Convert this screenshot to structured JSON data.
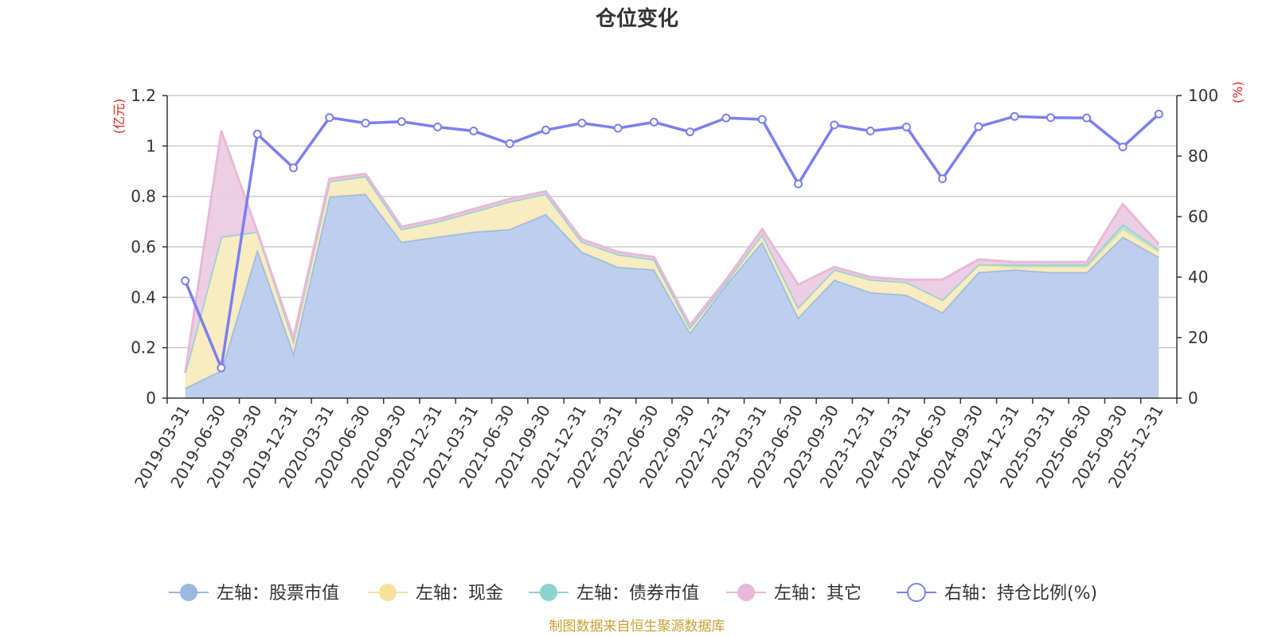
{
  "chart_data": {
    "type": "area",
    "title": "仓位变化",
    "left_axis": {
      "unit": "(亿元)",
      "ylim": [
        0,
        1.2
      ],
      "ticks": [
        0,
        0.2,
        0.4,
        0.6,
        0.8,
        1,
        1.2
      ],
      "tick_labels": [
        "0",
        "0.2",
        "0.4",
        "0.6",
        "0.8",
        "1",
        "1.2"
      ]
    },
    "right_axis": {
      "unit": "(%)",
      "ylim": [
        0,
        100
      ],
      "ticks": [
        0,
        20,
        40,
        60,
        80,
        100
      ],
      "tick_labels": [
        "0",
        "20",
        "40",
        "60",
        "80",
        "100"
      ]
    },
    "categories": [
      "2019-03-31",
      "2019-06-30",
      "2019-09-30",
      "2019-12-31",
      "2020-03-31",
      "2020-06-30",
      "2020-09-30",
      "2020-12-31",
      "2021-03-31",
      "2021-06-30",
      "2021-09-30",
      "2021-12-31",
      "2022-03-31",
      "2022-06-30",
      "2022-09-30",
      "2022-12-31",
      "2023-03-31",
      "2023-06-30",
      "2023-09-30",
      "2023-12-31",
      "2024-03-31",
      "2024-06-30",
      "2024-09-30",
      "2024-12-31",
      "2025-03-31",
      "2025-06-30",
      "2025-09-30",
      "2025-12-31"
    ],
    "series": [
      {
        "name": "左轴：股票市值",
        "axis": "left",
        "type": "area",
        "color": "#9bb8e0",
        "fill": "#b8cceb",
        "values": [
          0.04,
          0.11,
          0.59,
          0.18,
          0.8,
          0.81,
          0.62,
          0.64,
          0.66,
          0.67,
          0.73,
          0.58,
          0.52,
          0.51,
          0.26,
          0.45,
          0.62,
          0.32,
          0.47,
          0.42,
          0.41,
          0.34,
          0.5,
          0.51,
          0.5,
          0.5,
          0.64,
          0.56
        ]
      },
      {
        "name": "左轴：现金",
        "axis": "left",
        "type": "area",
        "color": "#f7e29a",
        "fill": "#f8ebbd",
        "values": [
          0.06,
          0.53,
          0.07,
          0.05,
          0.06,
          0.07,
          0.05,
          0.06,
          0.08,
          0.11,
          0.08,
          0.04,
          0.05,
          0.04,
          0.02,
          0.01,
          0.03,
          0.04,
          0.04,
          0.05,
          0.05,
          0.05,
          0.03,
          0.01,
          0.02,
          0.02,
          0.03,
          0.02
        ]
      },
      {
        "name": "左轴：债券市值",
        "axis": "left",
        "type": "area",
        "color": "#8fd3cf",
        "fill": "#aedfdc",
        "values": [
          0,
          0,
          0,
          0,
          0,
          0,
          0,
          0,
          0,
          0,
          0,
          0,
          0,
          0,
          0,
          0,
          0,
          0,
          0,
          0,
          0,
          0,
          0,
          0.01,
          0.01,
          0.01,
          0.02,
          0.01
        ]
      },
      {
        "name": "左轴：其它",
        "axis": "left",
        "type": "area",
        "color": "#e8b8d8",
        "fill": "#edcbe3",
        "values": [
          0,
          0.42,
          0,
          0.01,
          0.01,
          0.01,
          0.01,
          0.01,
          0.01,
          0.01,
          0.01,
          0.01,
          0.01,
          0.01,
          0.01,
          0.01,
          0.02,
          0.09,
          0.01,
          0.01,
          0.01,
          0.08,
          0.02,
          0.01,
          0.01,
          0.01,
          0.08,
          0.02
        ]
      },
      {
        "name": "右轴：持仓比例(%)",
        "axis": "right",
        "type": "line",
        "color": "#7b7ff0",
        "values": [
          38.8,
          10,
          87.3,
          76.1,
          92.7,
          90.9,
          91.4,
          89.6,
          88.3,
          84.1,
          88.6,
          90.9,
          89.2,
          91.2,
          88.0,
          92.6,
          92.1,
          70.8,
          90.3,
          88.3,
          89.6,
          72.5,
          89.7,
          93.1,
          92.7,
          92.6,
          83.0,
          93.9
        ]
      }
    ],
    "legend_position": "bottom",
    "grid": true
  },
  "footer": {
    "source": "制图数据来自恒生聚源数据库"
  }
}
